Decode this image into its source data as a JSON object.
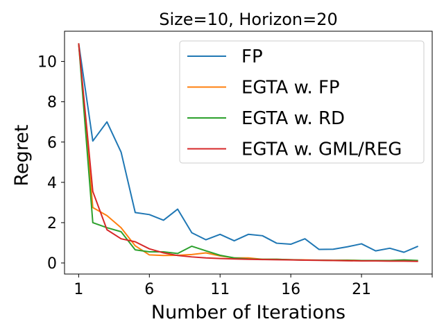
{
  "chart_data": {
    "type": "line",
    "title": "Size=10, Horizon=20",
    "xlabel": "Number of Iterations",
    "ylabel": "Regret",
    "xlim": [
      0,
      26
    ],
    "ylim": [
      -0.55,
      11.5
    ],
    "xticks": [
      1,
      6,
      11,
      16,
      21
    ],
    "xtick_labels": [
      "1",
      "6",
      "11",
      "16",
      "21"
    ],
    "yticks": [
      0,
      2,
      4,
      6,
      8,
      10
    ],
    "ytick_labels": [
      "0",
      "2",
      "4",
      "6",
      "8",
      "10"
    ],
    "grid": false,
    "legend_position": "top-right",
    "x": [
      1,
      2,
      3,
      4,
      5,
      6,
      7,
      8,
      9,
      10,
      11,
      12,
      13,
      14,
      15,
      16,
      17,
      18,
      19,
      20,
      21,
      22,
      23,
      24,
      25
    ],
    "series": [
      {
        "name": "FP",
        "color": "#1f77b4",
        "values": [
          10.9,
          6.05,
          7.0,
          5.5,
          2.5,
          2.4,
          2.12,
          2.67,
          1.5,
          1.15,
          1.42,
          1.1,
          1.42,
          1.35,
          0.98,
          0.93,
          1.2,
          0.67,
          0.68,
          0.8,
          0.95,
          0.6,
          0.73,
          0.53,
          0.83
        ]
      },
      {
        "name": "EGTA w. FP",
        "color": "#ff7f0e",
        "values": [
          10.9,
          2.75,
          2.35,
          1.75,
          0.85,
          0.4,
          0.37,
          0.38,
          0.42,
          0.5,
          0.35,
          0.25,
          0.25,
          0.18,
          0.18,
          0.16,
          0.15,
          0.14,
          0.13,
          0.14,
          0.12,
          0.12,
          0.11,
          0.1,
          0.1
        ]
      },
      {
        "name": "EGTA w. RD",
        "color": "#2ca02c",
        "values": [
          10.9,
          2.0,
          1.75,
          1.55,
          0.65,
          0.55,
          0.55,
          0.47,
          0.83,
          0.6,
          0.38,
          0.25,
          0.2,
          0.18,
          0.18,
          0.16,
          0.14,
          0.14,
          0.13,
          0.13,
          0.12,
          0.12,
          0.12,
          0.15,
          0.12
        ]
      },
      {
        "name": "EGTA w. GML/REG",
        "color": "#d62728",
        "values": [
          10.9,
          3.55,
          1.65,
          1.2,
          1.05,
          0.7,
          0.5,
          0.37,
          0.3,
          0.25,
          0.22,
          0.2,
          0.18,
          0.17,
          0.16,
          0.15,
          0.14,
          0.13,
          0.12,
          0.11,
          0.1,
          0.1,
          0.09,
          0.09,
          0.08
        ]
      }
    ]
  }
}
